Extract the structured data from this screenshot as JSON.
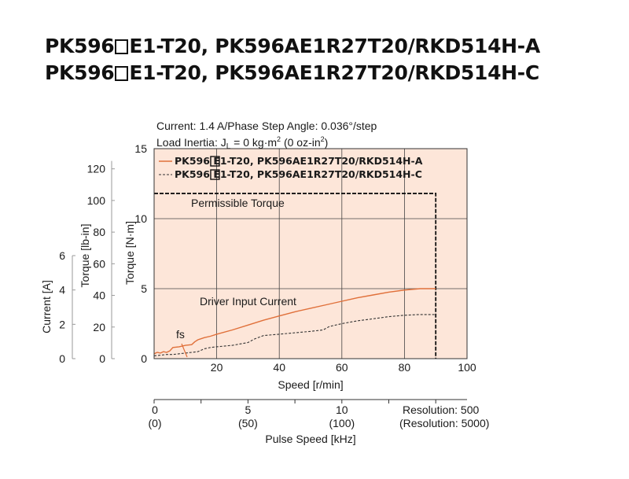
{
  "titles": {
    "line1": {
      "pre": "PK596",
      "post": "E1-T20, PK596AE1R27T20/RKD514H-A"
    },
    "line2": {
      "pre": "PK596",
      "post": "E1-T20, PK596AE1R27T20/RKD514H-C"
    }
  },
  "conditions": {
    "line1": "Current: 1.4 A/Phase   Step Angle: 0.036°/step",
    "line2_pre": "Load Inertia: J",
    "line2_sub": "L",
    "line2_mid": " = 0 kg·m",
    "line2_sup": "2",
    "line2_mid2": " (0 oz-in",
    "line2_sup2": "2",
    "line2_post": ")"
  },
  "colors": {
    "plot_bg": "#fde6d9",
    "series_a": "#e0703a",
    "series_c": "#333333",
    "grid": "#444444"
  },
  "chart_data": {
    "type": "line",
    "xlabel": "Speed [r/min]",
    "xlim": [
      0,
      100
    ],
    "xticks": [
      20,
      40,
      60,
      80,
      100
    ],
    "ylabel": "Torque [N·m]",
    "ylim": [
      0,
      15
    ],
    "yticks": [
      0,
      5,
      10,
      15
    ],
    "ylabel_lbin": "Torque [lb-in]",
    "yticks_lbin": [
      0,
      20,
      40,
      60,
      80,
      100,
      120
    ],
    "ylabel_current": "Current [A]",
    "yticks_current": [
      0,
      2,
      4,
      6
    ],
    "grid": true,
    "legend_position": "top-left",
    "series": [
      {
        "name_pre": "PK596",
        "name_post": "E1-T20, PK596AE1R27T20/RKD514H-A",
        "style": "solid",
        "x": [
          0,
          1,
          2,
          3,
          4,
          5,
          6,
          8,
          10,
          12,
          13,
          14,
          16,
          18,
          20,
          25,
          30,
          35,
          40,
          45,
          50,
          55,
          60,
          65,
          70,
          75,
          80,
          85,
          90
        ],
        "y": [
          0.35,
          0.45,
          0.4,
          0.5,
          0.45,
          0.55,
          0.8,
          0.85,
          0.95,
          1.0,
          1.2,
          1.35,
          1.5,
          1.6,
          1.75,
          2.05,
          2.4,
          2.75,
          3.05,
          3.35,
          3.6,
          3.85,
          4.1,
          4.35,
          4.55,
          4.75,
          4.9,
          5.0,
          5.0
        ]
      },
      {
        "name_pre": "PK596",
        "name_post": "E1-T20, PK596AE1R27T20/RKD514H-C",
        "style": "dashed",
        "x": [
          0,
          2,
          4,
          6,
          8,
          10,
          12,
          14,
          16,
          18,
          20,
          25,
          30,
          32,
          35,
          40,
          45,
          50,
          54,
          56,
          60,
          65,
          70,
          75,
          80,
          85,
          90
        ],
        "y": [
          0.2,
          0.25,
          0.3,
          0.3,
          0.35,
          0.4,
          0.45,
          0.5,
          0.7,
          0.8,
          0.85,
          0.95,
          1.15,
          1.4,
          1.65,
          1.75,
          1.85,
          1.95,
          2.05,
          2.3,
          2.5,
          2.7,
          2.85,
          3.0,
          3.1,
          3.15,
          3.15
        ]
      }
    ],
    "permissible_torque": {
      "label": "Permissible Torque",
      "torque": 11.8,
      "max_speed": 90
    },
    "annotations": {
      "driver_current": "Driver Input Current",
      "fs": "fs"
    },
    "pulse_axis": {
      "label": "Pulse Speed [kHz]",
      "ticks": [
        {
          "speed": 0,
          "main": "0",
          "sub": "(0)"
        },
        {
          "speed": 30,
          "main": "5",
          "sub": "(50)"
        },
        {
          "speed": 60,
          "main": "10",
          "sub": "(100)"
        }
      ],
      "resolution_main": "Resolution: 500",
      "resolution_sub": "(Resolution: 5000)"
    }
  }
}
